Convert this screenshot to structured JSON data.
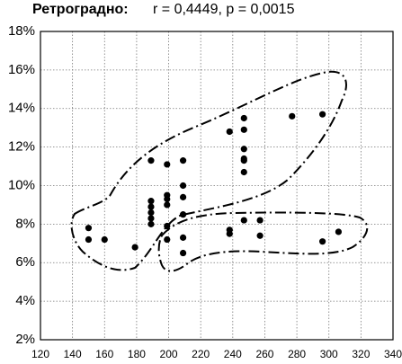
{
  "chart_data": {
    "type": "scatter",
    "title": "Ретроградно:",
    "annotation": "r = 0,4449, p = 0,0015",
    "color": "#000000",
    "grid": true,
    "x": [
      150,
      150,
      160,
      179,
      189,
      189,
      189,
      189,
      189,
      189,
      199,
      199,
      199,
      199,
      199,
      199,
      209,
      209,
      209,
      209,
      209,
      209,
      238,
      238,
      238,
      247,
      247,
      247,
      247,
      247,
      247,
      247,
      257,
      257,
      277,
      296,
      296,
      306
    ],
    "values": [
      7.8,
      7.2,
      7.2,
      6.8,
      11.3,
      9.2,
      8.9,
      8.6,
      8.3,
      8.0,
      11.1,
      9.5,
      9.3,
      9.0,
      7.9,
      7.2,
      11.3,
      10.0,
      9.4,
      8.5,
      7.3,
      6.5,
      12.8,
      7.7,
      7.5,
      13.5,
      12.9,
      11.9,
      11.4,
      11.3,
      10.7,
      8.2,
      8.2,
      7.4,
      13.6,
      13.7,
      7.1,
      7.6
    ],
    "xlim": [
      120,
      340
    ],
    "xticks": [
      120,
      140,
      160,
      180,
      200,
      220,
      240,
      260,
      280,
      300,
      320,
      340
    ],
    "ylim": [
      2,
      18
    ],
    "yticks": [
      {
        "value": 2,
        "label": "2%"
      },
      {
        "value": 4,
        "label": "4%"
      },
      {
        "value": 6,
        "label": "6%"
      },
      {
        "value": 8,
        "label": "8%"
      },
      {
        "value": 10,
        "label": "10%"
      },
      {
        "value": 12,
        "label": "12%"
      },
      {
        "value": 14,
        "label": "14%"
      },
      {
        "value": 16,
        "label": "16%"
      },
      {
        "value": 18,
        "label": "18%"
      }
    ]
  }
}
